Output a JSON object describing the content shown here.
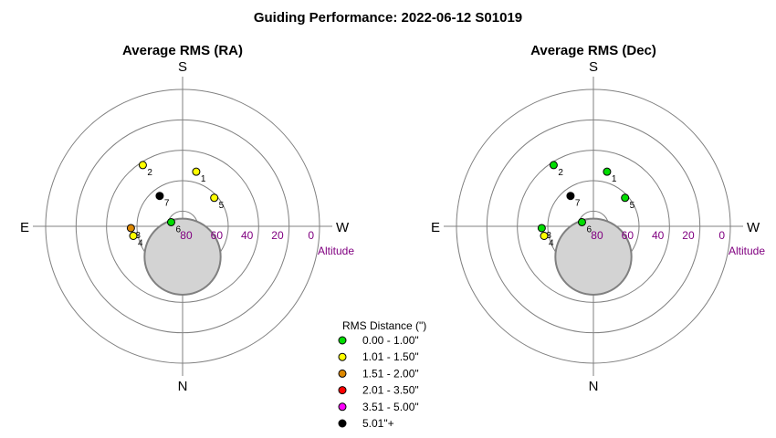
{
  "title": "Guiding Performance: 2022-06-12 S01019",
  "directions": {
    "top": "S",
    "bottom": "N",
    "left": "E",
    "right": "W"
  },
  "altitude_label": "Altitude",
  "colors": {
    "ring": "#808080",
    "axis": "#808080",
    "altitude_text": "#800080",
    "moon_fill": "#d3d3d3",
    "moon_stroke": "#808080"
  },
  "legend": {
    "title": "RMS Distance (\")",
    "items": [
      {
        "label": "0.00 - 1.00\"",
        "color": "#00dd00"
      },
      {
        "label": "1.01 - 1.50\"",
        "color": "#ffff00"
      },
      {
        "label": "1.51 - 2.00\"",
        "color": "#dd8800"
      },
      {
        "label": "2.01 - 3.50\"",
        "color": "#ff0000"
      },
      {
        "label": "3.51 - 5.00\"",
        "color": "#ff00ff"
      },
      {
        "label": "5.01\"+",
        "color": "#000000"
      }
    ]
  },
  "chart_data": [
    {
      "type": "scatter",
      "projection": "polar-altitude-azimuth",
      "title": "Average RMS (RA)",
      "r_ticks": [
        80,
        60,
        40,
        20,
        0
      ],
      "moon": {
        "azimuth_deg": 0,
        "altitude_deg": 70,
        "radius_deg": 25
      },
      "points": [
        {
          "label": "1",
          "azimuth_deg": 166,
          "altitude_deg": 53,
          "rms_class": 1
        },
        {
          "label": "2",
          "azimuth_deg": 213,
          "altitude_deg": 42,
          "rms_class": 1
        },
        {
          "label": "3",
          "azimuth_deg": 272,
          "altitude_deg": 56,
          "rms_class": 2
        },
        {
          "label": "4",
          "azimuth_deg": 281,
          "altitude_deg": 57,
          "rms_class": 1
        },
        {
          "label": "5",
          "azimuth_deg": 132,
          "altitude_deg": 62,
          "rms_class": 1
        },
        {
          "label": "6",
          "azimuth_deg": 250,
          "altitude_deg": 82,
          "rms_class": 0
        },
        {
          "label": "7",
          "azimuth_deg": 217,
          "altitude_deg": 65,
          "rms_class": 5
        }
      ]
    },
    {
      "type": "scatter",
      "projection": "polar-altitude-azimuth",
      "title": "Average RMS (Dec)",
      "r_ticks": [
        80,
        60,
        40,
        20,
        0
      ],
      "moon": {
        "azimuth_deg": 0,
        "altitude_deg": 70,
        "radius_deg": 25
      },
      "points": [
        {
          "label": "1",
          "azimuth_deg": 166,
          "altitude_deg": 53,
          "rms_class": 0
        },
        {
          "label": "2",
          "azimuth_deg": 213,
          "altitude_deg": 42,
          "rms_class": 0
        },
        {
          "label": "3",
          "azimuth_deg": 272,
          "altitude_deg": 56,
          "rms_class": 0
        },
        {
          "label": "4",
          "azimuth_deg": 281,
          "altitude_deg": 57,
          "rms_class": 1
        },
        {
          "label": "5",
          "azimuth_deg": 132,
          "altitude_deg": 62,
          "rms_class": 0
        },
        {
          "label": "6",
          "azimuth_deg": 250,
          "altitude_deg": 82,
          "rms_class": 0
        },
        {
          "label": "7",
          "azimuth_deg": 217,
          "altitude_deg": 65,
          "rms_class": 5
        }
      ]
    }
  ]
}
